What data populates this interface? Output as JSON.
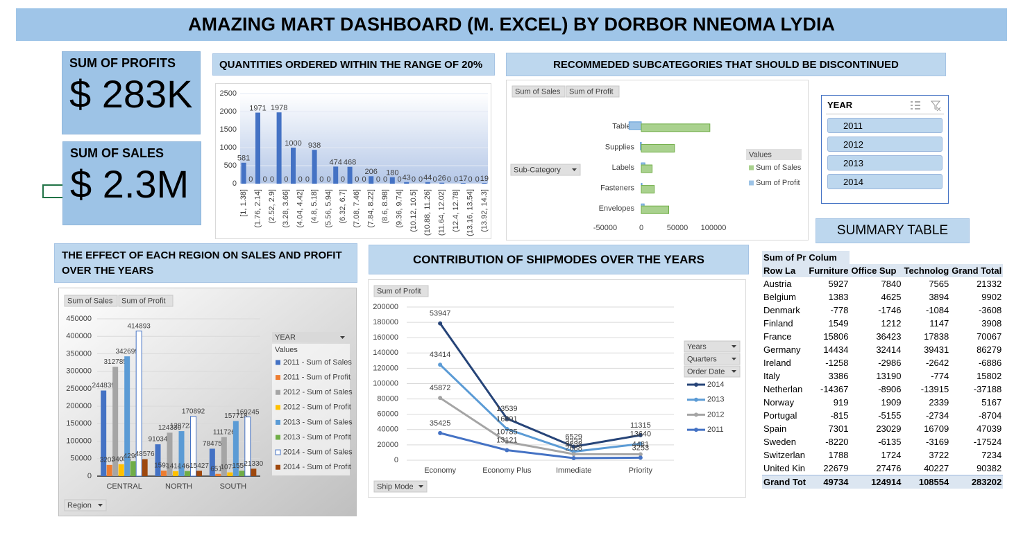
{
  "header": {
    "title": "AMAZING MART DASHBOARD (M. EXCEL) BY DORBOR NNEOMA LYDIA"
  },
  "kpis": [
    {
      "label": "SUM OF PROFITS",
      "value": "$ 283K"
    },
    {
      "label": "SUM OF SALES",
      "value": "$ 2.3M"
    }
  ],
  "chart_data": [
    {
      "type": "bar",
      "title": "QUANTITIES ORDERED WITHIN THE RANGE OF 20%",
      "categories": [
        "[1, 1.38]",
        null,
        "(1.76, 2.14]",
        null,
        "(2.52, 2.9]",
        null,
        "(3.28, 3.66]",
        null,
        "(4.04, 4.42]",
        null,
        "(4.8, 5.18]",
        null,
        "(5.56, 5.94]",
        null,
        "(6.32, 6.7]",
        null,
        "(7.08, 7.46]",
        null,
        "(7.84, 8.22]",
        null,
        "(8.6, 8.98]",
        null,
        "(9.36, 9.74]",
        null,
        "(10.12, 10.5]",
        null,
        "(10.88, 11.26]",
        null,
        "(11.64, 12.02]",
        null,
        "(12.4, 12.78]",
        null,
        "(13.16, 13.54]",
        null,
        "(13.92, 14.3]"
      ],
      "values": [
        581,
        0,
        1971,
        0,
        0,
        1978,
        0,
        1000,
        0,
        0,
        938,
        0,
        0,
        474,
        0,
        468,
        0,
        0,
        206,
        0,
        0,
        180,
        0,
        43,
        0,
        0,
        44,
        0,
        26,
        0,
        0,
        17,
        0,
        0,
        19
      ],
      "color": "#4472c4",
      "ylim": [
        0,
        2500
      ],
      "yticks": [
        0,
        500,
        1000,
        1500,
        2000,
        2500
      ],
      "grid": true
    },
    {
      "type": "hbar",
      "title": "RECOMMEDED SUBCATEGORIES THAT SHOULD BE DISCONTINUED",
      "categories": [
        "Tables",
        "Supplies",
        "Labels",
        "Fasteners",
        "Envelopes"
      ],
      "series": [
        {
          "name": "Sum of Sales",
          "color": "#a9d18e",
          "values": [
            95000,
            46000,
            15000,
            18000,
            38000
          ]
        },
        {
          "name": "Sum of Profit",
          "color": "#9dc3e6",
          "values": [
            -17000,
            -1200,
            5000,
            1000,
            4000
          ]
        }
      ],
      "xlim": [
        -50000,
        100000
      ],
      "xticks": [
        -50000,
        0,
        50000,
        100000
      ],
      "grid": false,
      "legend_title": "Values",
      "field_buttons": [
        "Sum of Sales",
        "Sum of Profit"
      ],
      "axis_field": "Sub-Category"
    },
    {
      "type": "grouped_bar",
      "title": "THE EFFECT OF EACH REGION ON SALES AND PROFIT OVER THE YEARS",
      "categories": [
        "CENTRAL",
        "NORTH",
        "SOUTH"
      ],
      "series": [
        {
          "name": "2011 - Sum of Sales",
          "color": "#4472c4",
          "values": [
            244839,
            91034,
            78475
          ]
        },
        {
          "name": "2011 - Sum of Profit",
          "color": "#ed7d31",
          "values": [
            32034,
            15934,
            6510
          ]
        },
        {
          "name": "2012 - Sum of Sales",
          "color": "#a5a5a5",
          "values": [
            312785,
            124330,
            111726
          ]
        },
        {
          "name": "2012 - Sum of Profit",
          "color": "#ffc000",
          "values": [
            34088,
            14144,
            10710
          ]
        },
        {
          "name": "2013 - Sum of Sales",
          "color": "#5b9bd5",
          "values": [
            342699,
            128723,
            157718
          ]
        },
        {
          "name": "2013 - Sum of Profit",
          "color": "#70ad47",
          "values": [
            42984,
            14642,
            15555
          ]
        },
        {
          "name": "2014 - Sum of Sales",
          "color": "#ffffff",
          "values": [
            414893,
            170892,
            169245
          ]
        },
        {
          "name": "2014 - Sum of Profit",
          "color": "#9e480e",
          "values": [
            48576,
            15427,
            21330
          ]
        }
      ],
      "ylim": [
        0,
        450000
      ],
      "yticks": [
        0,
        50000,
        100000,
        150000,
        200000,
        250000,
        300000,
        350000,
        400000,
        450000
      ],
      "grid": true,
      "legend_title": "YEAR",
      "legend_subtitle": "Values",
      "field_buttons": [
        "Sum of Sales",
        "Sum of Profit"
      ],
      "axis_field": "Region"
    },
    {
      "type": "line",
      "stacked": true,
      "title": "CONTRIBUTION OF SHIPMODES OVER THE YEARS",
      "categories": [
        "Economy",
        "Economy Plus",
        "Immediate",
        "Priority"
      ],
      "series": [
        {
          "name": "2014",
          "color": "#264478",
          "values": [
            53947,
            13539,
            6529,
            11315
          ]
        },
        {
          "name": "2013",
          "color": "#5b9bd5",
          "values": [
            43414,
            16891,
            3232,
            13640
          ]
        },
        {
          "name": "2012",
          "color": "#a5a5a5",
          "values": [
            45872,
            10785,
            5232,
            4481
          ]
        },
        {
          "name": "2011",
          "color": "#4472c4",
          "values": [
            35425,
            13121,
            2688,
            3253
          ]
        }
      ],
      "ylim": [
        0,
        200000
      ],
      "yticks": [
        0,
        20000,
        40000,
        60000,
        80000,
        100000,
        120000,
        140000,
        160000,
        180000,
        200000
      ],
      "grid": true,
      "field_buttons": [
        "Sum of Profit"
      ],
      "legend_fields": [
        "Years",
        "Quarters",
        "Order Date"
      ],
      "axis_field": "Ship Mode"
    }
  ],
  "slicer": {
    "title": "YEAR",
    "items": [
      "2011",
      "2012",
      "2013",
      "2014"
    ]
  },
  "summary_table": {
    "title": "SUMMARY TABLE",
    "header": [
      [
        "Sum of Pr",
        "Colum"
      ],
      [
        "Row La",
        "Furniture",
        "Office Sup",
        "Technolog",
        "Grand Total"
      ]
    ],
    "rows": [
      [
        "Austria",
        5927,
        7840,
        7565,
        21332
      ],
      [
        "Belgium",
        1383,
        4625,
        3894,
        9902
      ],
      [
        "Denmark",
        -778,
        -1746,
        -1084,
        -3608
      ],
      [
        "Finland",
        1549,
        1212,
        1147,
        3908
      ],
      [
        "France",
        15806,
        36423,
        17838,
        70067
      ],
      [
        "Germany",
        14434,
        32414,
        39431,
        86279
      ],
      [
        "Ireland",
        -1258,
        -2986,
        -2642,
        -6886
      ],
      [
        "Italy",
        3386,
        13190,
        -774,
        15802
      ],
      [
        "Netherlan",
        -14367,
        -8906,
        -13915,
        -37188
      ],
      [
        "Norway",
        919,
        1909,
        2339,
        5167
      ],
      [
        "Portugal",
        -815,
        -5155,
        -2734,
        -8704
      ],
      [
        "Spain",
        7301,
        23029,
        16709,
        47039
      ],
      [
        "Sweden",
        -8220,
        -6135,
        -3169,
        -17524
      ],
      [
        "Switzerlan",
        1788,
        1724,
        3722,
        7234
      ],
      [
        "United Kin",
        22679,
        27476,
        40227,
        90382
      ]
    ],
    "total": [
      "Grand Tot",
      49734,
      124914,
      108554,
      283202
    ]
  }
}
